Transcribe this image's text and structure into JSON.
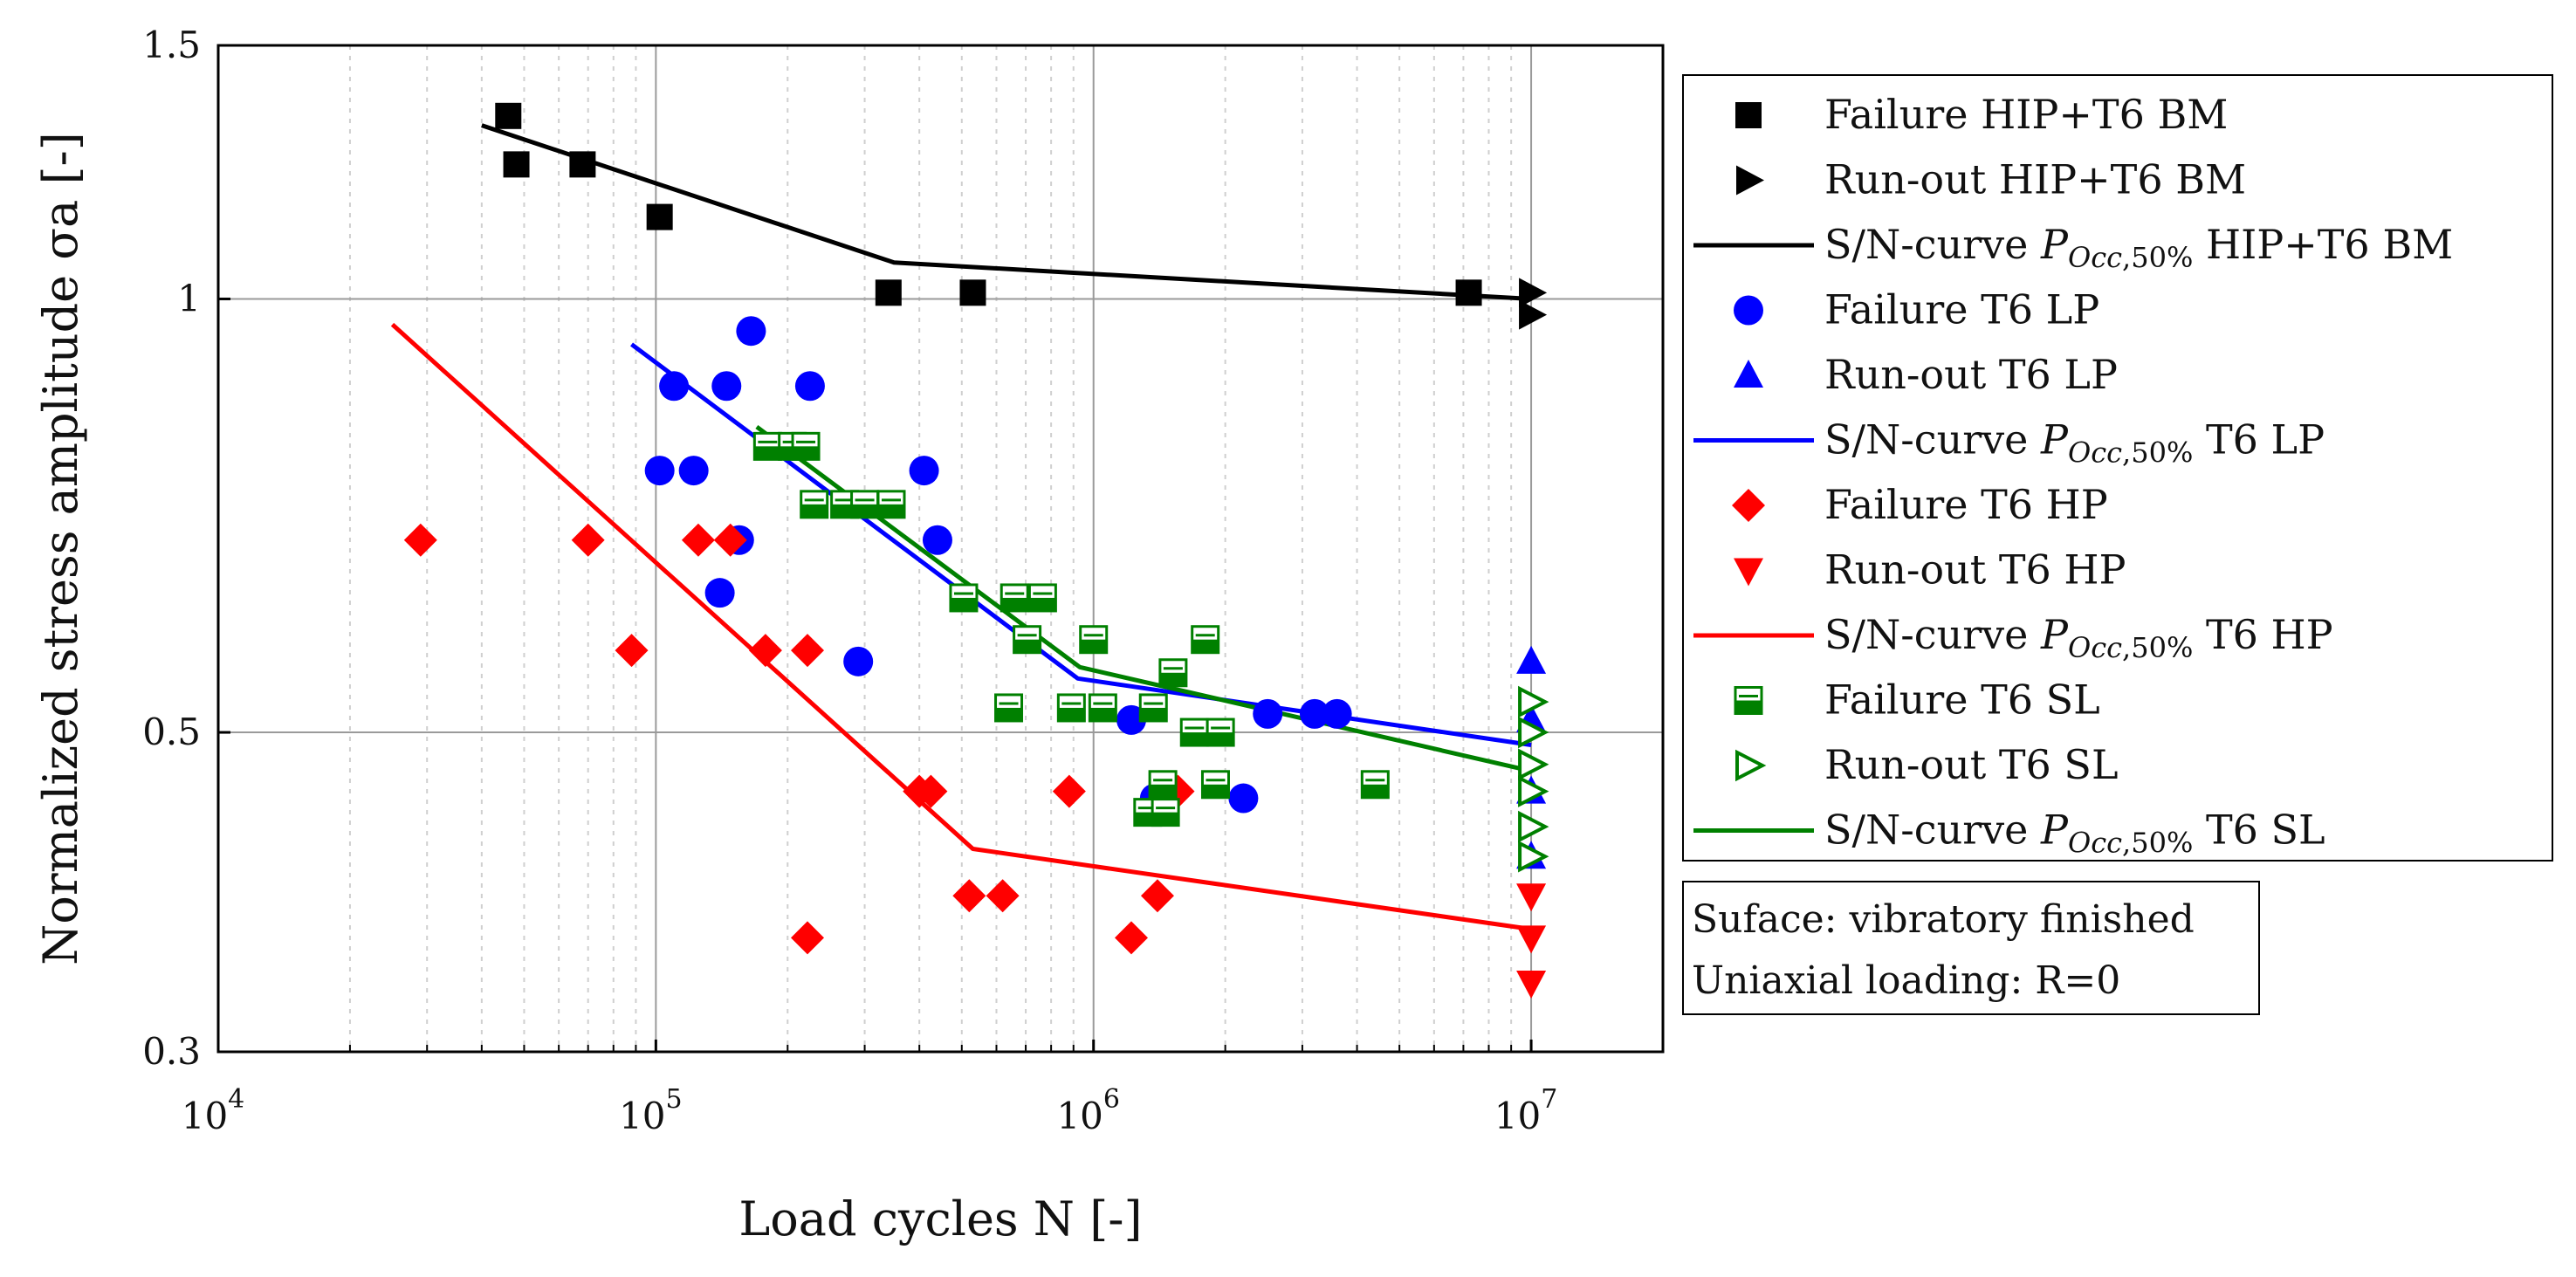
{
  "chart_data": {
    "type": "scatter",
    "xscale": "log",
    "yscale": "log",
    "xlim": [
      10000,
      20000000
    ],
    "ylim": [
      0.3,
      1.5
    ],
    "xlabel": "Load cycles N [-]",
    "ylabel": "Normalized stress amplitude σa [-]",
    "x_major_ticks": [
      10000,
      100000,
      1000000,
      10000000
    ],
    "x_tick_labels": [
      {
        "base": "10",
        "exp": "4"
      },
      {
        "base": "10",
        "exp": "5"
      },
      {
        "base": "10",
        "exp": "6"
      },
      {
        "base": "10",
        "exp": "7"
      }
    ],
    "y_ticks": [
      0.3,
      0.5,
      1,
      1.5
    ],
    "y_tick_labels": [
      "0.3",
      "0.5",
      "1",
      "1.5"
    ],
    "grid": true,
    "legend_position": "right",
    "colors": {
      "black": "#000000",
      "blue": "#0000ff",
      "red": "#ff0000",
      "green": "#008000"
    },
    "series": [
      {
        "name": "Failure HIP+T6 BM",
        "legend": "Failure HIP+T6 BM",
        "kind": "scatter",
        "marker": "square",
        "color": "#000000",
        "points": [
          [
            46000,
            1.34
          ],
          [
            48000,
            1.24
          ],
          [
            68000,
            1.24
          ],
          [
            102000,
            1.14
          ],
          [
            340000,
            1.01
          ],
          [
            530000,
            1.01
          ],
          [
            7200000,
            1.01
          ]
        ]
      },
      {
        "name": "Run-out HIP+T6 BM",
        "legend": "Run-out HIP+T6 BM",
        "kind": "scatter",
        "marker": "triangle-right",
        "color": "#000000",
        "points": [
          [
            10000000,
            1.01
          ],
          [
            10000000,
            0.975
          ]
        ]
      },
      {
        "name": "S/N-curve POcc,50% HIP+T6 BM",
        "legend": "S/N-curve",
        "legend_sub": "HIP+T6 BM",
        "kind": "line",
        "color": "#000000",
        "points": [
          [
            40000,
            1.32
          ],
          [
            350000,
            1.06
          ],
          [
            10000000,
            1.0
          ]
        ]
      },
      {
        "name": "Failure T6 LP",
        "legend": "Failure T6 LP",
        "kind": "scatter",
        "marker": "circle",
        "color": "#0000ff",
        "points": [
          [
            102000,
            0.76
          ],
          [
            110000,
            0.87
          ],
          [
            122000,
            0.76
          ],
          [
            145000,
            0.87
          ],
          [
            155000,
            0.68
          ],
          [
            140000,
            0.625
          ],
          [
            165000,
            0.95
          ],
          [
            225000,
            0.87
          ],
          [
            290000,
            0.56
          ],
          [
            410000,
            0.76
          ],
          [
            440000,
            0.68
          ],
          [
            1220000,
            0.51
          ],
          [
            1380000,
            0.45
          ],
          [
            2200000,
            0.45
          ],
          [
            2500000,
            0.515
          ],
          [
            3200000,
            0.515
          ],
          [
            3600000,
            0.515
          ]
        ]
      },
      {
        "name": "Run-out T6 LP",
        "legend": "Run-out T6 LP",
        "kind": "scatter",
        "marker": "triangle-up",
        "color": "#0000ff",
        "points": [
          [
            10000000,
            0.56
          ],
          [
            10000000,
            0.51
          ],
          [
            10000000,
            0.455
          ],
          [
            10000000,
            0.41
          ]
        ]
      },
      {
        "name": "S/N-curve POcc,50% T6 LP",
        "legend": "S/N-curve",
        "legend_sub": "T6 LP",
        "kind": "line",
        "color": "#0000ff",
        "points": [
          [
            88000,
            0.93
          ],
          [
            920000,
            0.545
          ],
          [
            10000000,
            0.49
          ]
        ]
      },
      {
        "name": "Failure T6 HP",
        "legend": "Failure T6 HP",
        "kind": "scatter",
        "marker": "diamond",
        "color": "#ff0000",
        "points": [
          [
            29000,
            0.68
          ],
          [
            70000,
            0.68
          ],
          [
            88000,
            0.57
          ],
          [
            125000,
            0.68
          ],
          [
            148000,
            0.68
          ],
          [
            178000,
            0.57
          ],
          [
            222000,
            0.57
          ],
          [
            222000,
            0.36
          ],
          [
            400000,
            0.455
          ],
          [
            425000,
            0.455
          ],
          [
            520000,
            0.385
          ],
          [
            620000,
            0.385
          ],
          [
            880000,
            0.455
          ],
          [
            1220000,
            0.36
          ],
          [
            1400000,
            0.385
          ],
          [
            1560000,
            0.455
          ]
        ]
      },
      {
        "name": "Run-out T6 HP",
        "legend": "Run-out T6 HP",
        "kind": "scatter",
        "marker": "triangle-down",
        "color": "#ff0000",
        "points": [
          [
            10000000,
            0.385
          ],
          [
            10000000,
            0.36
          ],
          [
            10000000,
            0.335
          ]
        ]
      },
      {
        "name": "S/N-curve POcc,50% T6 HP",
        "legend": "S/N-curve",
        "legend_sub": "T6 HP",
        "kind": "line",
        "color": "#ff0000",
        "points": [
          [
            25000,
            0.96
          ],
          [
            530000,
            0.415
          ],
          [
            10000000,
            0.365
          ]
        ]
      },
      {
        "name": "Failure T6 SL",
        "legend": "Failure T6 SL",
        "kind": "scatter",
        "marker": "square-half",
        "color": "#008000",
        "points": [
          [
            180000,
            0.79
          ],
          [
            205000,
            0.79
          ],
          [
            220000,
            0.79
          ],
          [
            230000,
            0.72
          ],
          [
            270000,
            0.72
          ],
          [
            300000,
            0.72
          ],
          [
            345000,
            0.72
          ],
          [
            505000,
            0.62
          ],
          [
            660000,
            0.62
          ],
          [
            705000,
            0.58
          ],
          [
            765000,
            0.62
          ],
          [
            640000,
            0.52
          ],
          [
            890000,
            0.52
          ],
          [
            1000000,
            0.58
          ],
          [
            1050000,
            0.52
          ],
          [
            1330000,
            0.44
          ],
          [
            1370000,
            0.52
          ],
          [
            1440000,
            0.46
          ],
          [
            1460000,
            0.44
          ],
          [
            1520000,
            0.55
          ],
          [
            1700000,
            0.5
          ],
          [
            1800000,
            0.58
          ],
          [
            1900000,
            0.46
          ],
          [
            1950000,
            0.5
          ],
          [
            4400000,
            0.46
          ]
        ]
      },
      {
        "name": "Run-out T6 SL",
        "legend": "Run-out T6 SL",
        "kind": "scatter",
        "marker": "triangle-right-open",
        "color": "#008000",
        "points": [
          [
            10000000,
            0.525
          ],
          [
            10000000,
            0.5
          ],
          [
            10000000,
            0.475
          ],
          [
            10000000,
            0.455
          ],
          [
            10000000,
            0.43
          ],
          [
            10000000,
            0.41
          ]
        ]
      },
      {
        "name": "S/N-curve POcc,50% T6 SL",
        "legend": "S/N-curve",
        "legend_sub": "T6 SL",
        "kind": "line",
        "color": "#008000",
        "points": [
          [
            170000,
            0.815
          ],
          [
            930000,
            0.555
          ],
          [
            10000000,
            0.47
          ]
        ]
      }
    ],
    "annotation": {
      "line1": "Suface: vibratory finished",
      "line2": "Uniaxial loading: R=0"
    }
  }
}
